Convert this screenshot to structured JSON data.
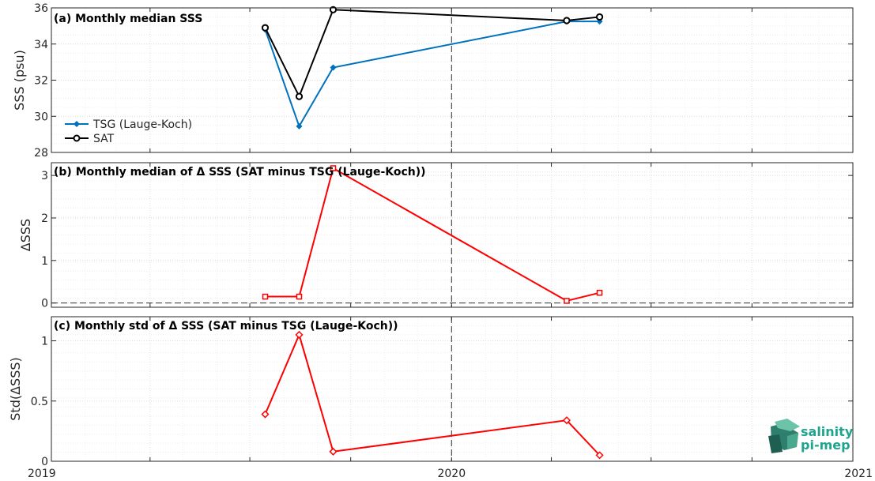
{
  "chart_data": [
    {
      "type": "line",
      "title": "(a) Monthly median SSS",
      "xlabel": "",
      "ylabel": "SSS (psu)",
      "xlim": [
        "2019-01-01",
        "2021-01-01"
      ],
      "ylim": [
        28,
        36
      ],
      "yticks": [
        28,
        30,
        32,
        34,
        36
      ],
      "grid": true,
      "legend_position": "bottom-left",
      "series": [
        {
          "name": "TSG (Lauge-Koch)",
          "color": "#0072BD",
          "marker": "filled-diamond",
          "x": [
            "2019-07-15",
            "2019-08-15",
            "2019-09-15",
            "2020-04-15",
            "2020-05-15"
          ],
          "y": [
            34.8,
            29.45,
            32.7,
            35.25,
            35.25
          ]
        },
        {
          "name": "SAT",
          "color": "#000000",
          "marker": "open-circle",
          "x": [
            "2019-07-15",
            "2019-08-15",
            "2019-09-15",
            "2020-04-15",
            "2020-05-15"
          ],
          "y": [
            34.9,
            31.1,
            35.9,
            35.3,
            35.5
          ]
        }
      ]
    },
    {
      "type": "line",
      "title": "(b) Monthly median of Δ SSS (SAT minus TSG (Lauge-Koch))",
      "xlabel": "",
      "ylabel": "ΔSSS",
      "xlim": [
        "2019-01-01",
        "2021-01-01"
      ],
      "ylim": [
        -0.1,
        3.3
      ],
      "yticks": [
        0,
        1,
        2,
        3
      ],
      "grid": true,
      "zero_line": true,
      "series": [
        {
          "color": "#FF0000",
          "marker": "open-square",
          "x": [
            "2019-07-15",
            "2019-08-15",
            "2019-09-15",
            "2020-04-15",
            "2020-05-15"
          ],
          "y": [
            0.15,
            0.15,
            3.17,
            0.05,
            0.24
          ]
        }
      ]
    },
    {
      "type": "line",
      "title": "(c) Monthly std of Δ SSS (SAT minus TSG (Lauge-Koch))",
      "xlabel": "",
      "ylabel": "Std(ΔSSS)",
      "xlim": [
        "2019-01-01",
        "2021-01-01"
      ],
      "ylim": [
        0,
        1.2
      ],
      "yticks": [
        0,
        0.5,
        1
      ],
      "grid": true,
      "series": [
        {
          "color": "#FF0000",
          "marker": "open-diamond",
          "x": [
            "2019-07-15",
            "2019-08-15",
            "2019-09-15",
            "2020-04-15",
            "2020-05-15"
          ],
          "y": [
            0.39,
            1.05,
            0.08,
            0.34,
            0.05
          ]
        }
      ]
    }
  ],
  "x_tick_labels": [
    "2019",
    "2020",
    "2021"
  ],
  "logo": {
    "line1": "salinity",
    "line2": "pi-mep",
    "color": "#1FA58F"
  }
}
